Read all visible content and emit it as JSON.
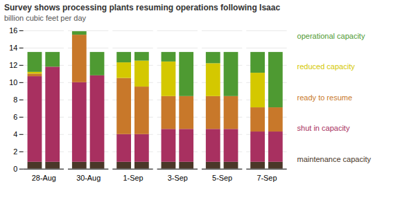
{
  "chart_data": {
    "type": "bar",
    "title": "Survey shows processing plants resuming operations following Isaac",
    "subtitle": "billion cubic feet per day",
    "categories": [
      "28-Aug",
      null,
      "30-Aug",
      null,
      "1-Sep",
      null,
      "3-Sep",
      null,
      "5-Sep",
      null,
      "7-Sep",
      null
    ],
    "series": [
      {
        "name": "maintenance capacity",
        "color": "#4a3728",
        "values": [
          0.8,
          0.8,
          0.8,
          0.8,
          0.8,
          0.8,
          0.8,
          0.8,
          0.8,
          0.8,
          0.8,
          0.8
        ]
      },
      {
        "name": "shut in capacity",
        "color": "#a83060",
        "values": [
          9.9,
          11.0,
          9.2,
          10.0,
          3.2,
          3.2,
          3.8,
          3.8,
          3.8,
          3.8,
          3.5,
          3.5
        ]
      },
      {
        "name": "ready to resume",
        "color": "#c8782a",
        "values": [
          0.3,
          0.0,
          5.5,
          0.0,
          6.5,
          5.5,
          3.8,
          3.8,
          3.8,
          3.8,
          2.8,
          2.8
        ]
      },
      {
        "name": "reduced capacity",
        "color": "#d4c800",
        "values": [
          0.2,
          0.0,
          0.0,
          0.0,
          1.8,
          3.0,
          4.0,
          0.0,
          3.8,
          0.0,
          4.0,
          0.0
        ]
      },
      {
        "name": "operational capacity",
        "color": "#4e9a32",
        "values": [
          2.3,
          1.7,
          0.4,
          2.7,
          1.2,
          1.0,
          1.1,
          5.1,
          1.3,
          5.1,
          2.4,
          6.4
        ]
      }
    ],
    "stacked": true,
    "ylim": [
      0,
      16
    ],
    "yticks": [
      0,
      2,
      4,
      6,
      8,
      10,
      12,
      14,
      16
    ],
    "grid": true,
    "legend": "right"
  }
}
